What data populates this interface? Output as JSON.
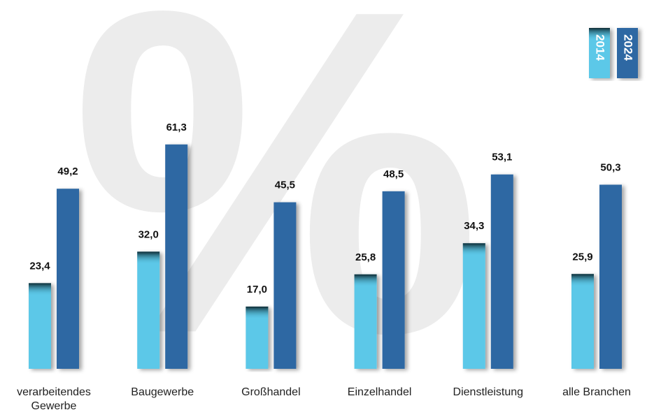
{
  "chart_data": {
    "type": "bar",
    "watermark": "%",
    "categories": [
      "verarbeitendes Gewerbe",
      "Baugewerbe",
      "Großhandel",
      "Einzelhandel",
      "Dienstleistung",
      "alle Branchen"
    ],
    "series": [
      {
        "name": "2014",
        "color": "#5bc8e8",
        "values": [
          23.4,
          32.0,
          17.0,
          25.8,
          34.3,
          25.9
        ],
        "value_labels": [
          "23,4",
          "32,0",
          "17,0",
          "25,8",
          "34,3",
          "25,9"
        ]
      },
      {
        "name": "2024",
        "color": "#2e67a3",
        "values": [
          49.2,
          61.3,
          45.5,
          48.5,
          53.1,
          50.3
        ],
        "value_labels": [
          "49,2",
          "61,3",
          "45,5",
          "48,5",
          "53,1",
          "50,3"
        ]
      }
    ],
    "ylim": [
      0,
      100
    ]
  }
}
